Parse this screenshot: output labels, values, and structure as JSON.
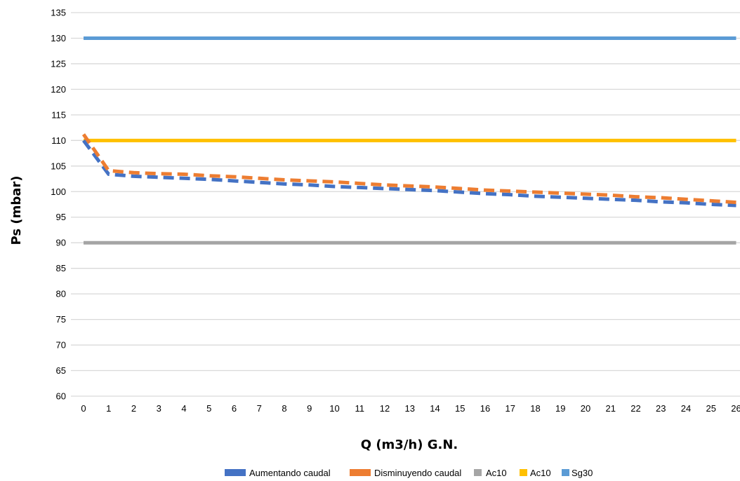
{
  "chart_data": {
    "type": "line",
    "title": "",
    "xlabel": "Q (m3/h) G.N.",
    "ylabel": "Ps (mbar)",
    "x": [
      0,
      1,
      2,
      3,
      4,
      5,
      6,
      7,
      8,
      9,
      10,
      11,
      12,
      13,
      14,
      15,
      16,
      17,
      18,
      19,
      20,
      21,
      22,
      23,
      24,
      25,
      26
    ],
    "x_tick_labels": [
      "0",
      "1",
      "2",
      "3",
      "4",
      "5",
      "6",
      "7",
      "8",
      "9",
      "10",
      "11",
      "12",
      "13",
      "14",
      "15",
      "16",
      "17",
      "18",
      "19",
      "20",
      "21",
      "22",
      "23",
      "24",
      "25",
      "26"
    ],
    "ylim": [
      60,
      135
    ],
    "y_ticks": [
      60,
      65,
      70,
      75,
      80,
      85,
      90,
      95,
      100,
      105,
      110,
      115,
      120,
      125,
      130,
      135
    ],
    "grid": true,
    "legend_position": "bottom",
    "series": [
      {
        "name": "Aumentando caudal",
        "color": "#4472C4",
        "style": "dashed",
        "values": [
          110.0,
          103.4,
          103.0,
          102.8,
          102.6,
          102.4,
          102.1,
          101.8,
          101.5,
          101.3,
          101.0,
          100.8,
          100.6,
          100.4,
          100.2,
          99.9,
          99.6,
          99.4,
          99.1,
          98.9,
          98.7,
          98.5,
          98.3,
          98.0,
          97.8,
          97.5,
          97.3
        ]
      },
      {
        "name": "Disminuyendo caudal",
        "color": "#ED7D31",
        "style": "dashed",
        "values": [
          111.2,
          104.1,
          103.7,
          103.5,
          103.4,
          103.1,
          102.9,
          102.6,
          102.3,
          102.1,
          101.9,
          101.6,
          101.3,
          101.1,
          100.9,
          100.6,
          100.3,
          100.1,
          99.9,
          99.7,
          99.5,
          99.3,
          99.0,
          98.8,
          98.5,
          98.2,
          97.9
        ]
      },
      {
        "name": "Ac10",
        "color": "#A5A5A5",
        "style": "solid",
        "values": [
          90,
          90,
          90,
          90,
          90,
          90,
          90,
          90,
          90,
          90,
          90,
          90,
          90,
          90,
          90,
          90,
          90,
          90,
          90,
          90,
          90,
          90,
          90,
          90,
          90,
          90,
          90
        ]
      },
      {
        "name": "Ac10",
        "color": "#FFC000",
        "style": "solid",
        "values": [
          110,
          110,
          110,
          110,
          110,
          110,
          110,
          110,
          110,
          110,
          110,
          110,
          110,
          110,
          110,
          110,
          110,
          110,
          110,
          110,
          110,
          110,
          110,
          110,
          110,
          110,
          110
        ]
      },
      {
        "name": "Sg30",
        "color": "#5B9BD5",
        "style": "solid",
        "values": [
          130,
          130,
          130,
          130,
          130,
          130,
          130,
          130,
          130,
          130,
          130,
          130,
          130,
          130,
          130,
          130,
          130,
          130,
          130,
          130,
          130,
          130,
          130,
          130,
          130,
          130,
          130
        ]
      }
    ]
  }
}
